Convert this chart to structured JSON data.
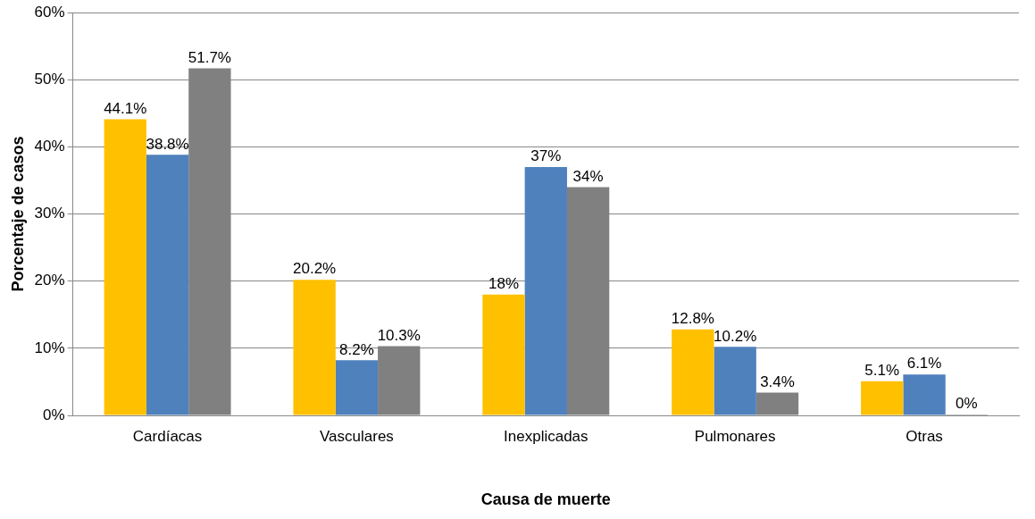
{
  "chart_data": {
    "type": "bar",
    "xlabel": "Causa de muerte",
    "ylabel": "Porcentaje de casos",
    "categories": [
      "Cardíacas",
      "Vasculares",
      "Inexplicadas",
      "Pulmonares",
      "Otras"
    ],
    "series": [
      {
        "color": "#ffc000",
        "values": [
          44.1,
          20.2,
          18,
          12.8,
          5.1
        ],
        "value_labels": [
          "44.1%",
          "20.2%",
          "18%",
          "12.8%",
          "5.1%"
        ]
      },
      {
        "color": "#4f81bd",
        "values": [
          38.8,
          8.2,
          37,
          10.2,
          6.1
        ],
        "value_labels": [
          "38.8%",
          "8.2%",
          "37%",
          "10.2%",
          "6.1%"
        ]
      },
      {
        "color": "#808080",
        "values": [
          51.7,
          10.3,
          34,
          3.4,
          0
        ],
        "value_labels": [
          "51.7%",
          "10.3%",
          "34%",
          "3.4%",
          "0%"
        ]
      }
    ],
    "ylim": [
      0,
      60
    ],
    "yticks": [
      {
        "value": 0,
        "label": "0%"
      },
      {
        "value": 10,
        "label": "10%"
      },
      {
        "value": 20,
        "label": "20%"
      },
      {
        "value": 30,
        "label": "30%"
      },
      {
        "value": 40,
        "label": "40%"
      },
      {
        "value": 50,
        "label": "50%"
      },
      {
        "value": 60,
        "label": "60%"
      }
    ],
    "grid": "y",
    "legend": false
  }
}
